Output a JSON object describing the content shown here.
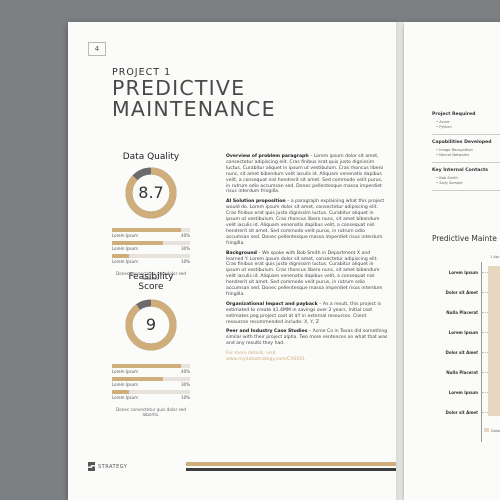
{
  "left_page": {
    "page_number": "4",
    "project_label": "PROJECT 1",
    "title_line1": "PREDICTIVE",
    "title_line2": "MAINTENANCE",
    "data_quality": {
      "heading": "Data Quality",
      "score": "8.7",
      "score_value": 8.7,
      "rows": [
        {
          "label": "Lorem Ipsum",
          "pct": "40%",
          "value": 40
        },
        {
          "label": "Lorem Ipsum",
          "pct": "30%",
          "value": 30
        },
        {
          "label": "Lorem Ipsum",
          "pct": "10%",
          "value": 10
        }
      ],
      "note": "Donec consectetur quis dolor sed lobortis."
    },
    "feasibility": {
      "heading_line1": "Feasibility",
      "heading_line2": "Score",
      "score": "9",
      "score_value": 9,
      "rows": [
        {
          "label": "Lorem Ipsum",
          "pct": "40%",
          "value": 40
        },
        {
          "label": "Lorem Ipsum",
          "pct": "30%",
          "value": 30
        },
        {
          "label": "Lorem Ipsum",
          "pct": "10%",
          "value": 10
        }
      ],
      "note": "Donec consectetur quis dolor sed lobortis."
    },
    "paragraphs": [
      {
        "head": "Overview of problem paragraph",
        "text": " – Lorem ipsum dolor sit amet, consectetur adipiscing elit. Cras finibus erat quis justo dignissim luctus. Curabitur aliquet in ipsum ut vestibulum. Cras rhoncus libero nunc, sit amet bibendum velit iaculis id. Aliquam venenatis dapibus velit, a consequat nisl hendrerit sit amet. Sed commodo velit purus, in rutrum odio accumsan sed. Donec pellentesque massa imperdiet risus interdum fringilla."
      },
      {
        "head": "AI Solution proposition",
        "text": " – a paragraph explaining what this project would do. Lorem ipsum dolor sit amet, consectetur adipiscing elit. Cras finibus erat quis justo dignissim luctus. Curabitur aliquet in ipsum ut vestibulum. Cras rhoncus libero nunc, sit amet bibendum velit iaculis id. Aliquam venenatis dapibus velit, a consequat nisl hendrerit sit amet. Sed commodo velit purus, in rutrum odio accumsan sed. Donec pellentesque massa imperdiet risus interdum fringilla."
      },
      {
        "head": "Background",
        "text": " – We spoke with Bob Smith in Department X and learned Y. Lorem ipsum dolor sit amet, consectetur adipiscing elit. Cras finibus erat quis justo dignissim luctus. Curabitur aliquet in ipsum ut vestibulum. Cras rhoncus libero nunc, sit amet bibendum velit iaculis id. Aliquam venenatis dapibus velit, a consequat nisl hendrerit sit amet. Sed commodo velit purus, in rutrum odio accumsan sed. Donec pellentesque massa imperdiet risus interdum fringilla."
      },
      {
        "head": "Organizational Impact and payback",
        "text": " – As a result, this project is estimated to create $1.4MM in savings over 2 years. Initial cost estimates peg project cost at $Y in external resources. Client resources recommended include: X, Y, Z"
      },
      {
        "head": "Peer and Industry Case Studies",
        "text": " – Acme Co in Texas did something similar with their project alpha. Two more sentences on what that was and any results they had."
      }
    ],
    "more_details_label": "For more details, visit",
    "more_details_url": "www.mydatastrategy.com/CASE01",
    "logo_text": "STRATEGY"
  },
  "right_page": {
    "sections": [
      {
        "heading": "Project Required",
        "items": [
          "Azure",
          "Python"
        ]
      },
      {
        "heading": "Capabilities Developed",
        "items": [
          "Image Recognition",
          "Neural Networks"
        ]
      },
      {
        "heading": "Key Internal Contacts",
        "items": [
          "Bob Smith",
          "Sally Sample"
        ]
      }
    ],
    "chart_title": "Predictive Mainte",
    "chart_data": {
      "type": "bar",
      "title": "Predictive Mainte",
      "top_label": "1 Apr",
      "categories": [
        "Lorem Ipsum",
        "Dolor sit Amet",
        "Nulla Placerat",
        "Lorem Ipsum",
        "Dolor sit Amet",
        "Nulla Placerat",
        "Lorem Ipsum",
        "Dolor sit Amet"
      ],
      "legend_label": "Dolor S"
    }
  },
  "colors": {
    "accent": "#cfae7c",
    "dark": "#3d3d3d",
    "ring_grey": "#6b6b6b"
  }
}
